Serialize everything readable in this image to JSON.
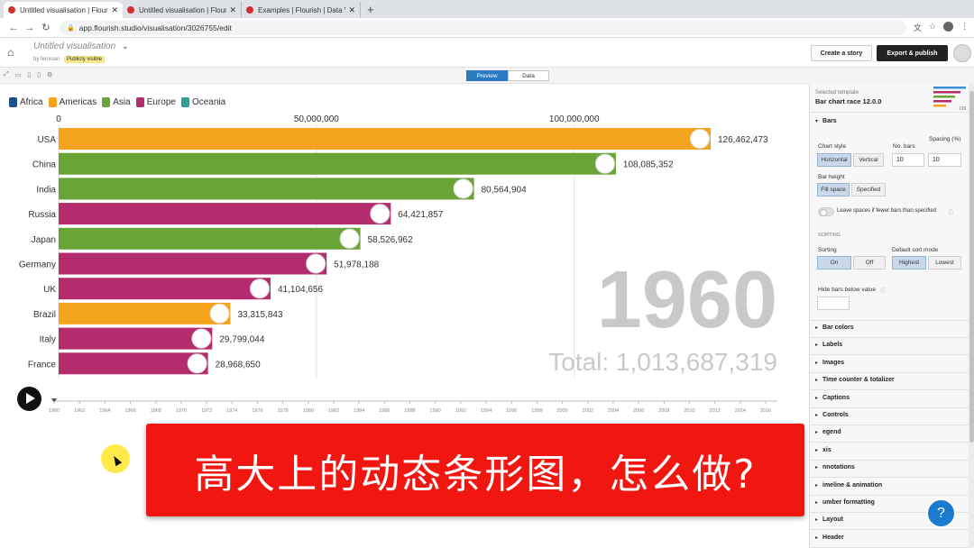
{
  "browser": {
    "tabs": [
      {
        "title": "Untitled visualisation | Flourish",
        "active": true
      },
      {
        "title": "Untitled visualisation | Flourish",
        "active": false
      },
      {
        "title": "Examples | Flourish | Data Visu",
        "active": false
      }
    ],
    "new_tab": "+",
    "url": "app.flourish.studio/visualisation/3026755/edit"
  },
  "header": {
    "title": "Untitled visualisation",
    "by": "by fenxuan",
    "visibility": "Publicly visible",
    "create_story": "Create a story",
    "export_publish": "Export & publish"
  },
  "toolbar": {
    "preview": "Preview",
    "data": "Data"
  },
  "chart_data": {
    "type": "bar",
    "orientation": "horizontal",
    "title": "",
    "legend": [
      {
        "name": "Africa",
        "color": "#1f4e8c"
      },
      {
        "name": "Americas",
        "color": "#f3a31c"
      },
      {
        "name": "Asia",
        "color": "#6aa436"
      },
      {
        "name": "Europe",
        "color": "#b42c6e"
      },
      {
        "name": "Oceania",
        "color": "#2aa198"
      }
    ],
    "categories": [
      "USA",
      "China",
      "India",
      "Russia",
      "Japan",
      "Germany",
      "UK",
      "Brazil",
      "Italy",
      "France"
    ],
    "values": [
      126462473,
      108085352,
      80564904,
      64421857,
      58526962,
      51978188,
      41104656,
      33315843,
      29799044,
      28968650
    ],
    "value_labels": [
      "126,462,473",
      "108,085,352",
      "80,564,904",
      "64,421,857",
      "58,526,962",
      "51,978,188",
      "41,104,656",
      "33,315,843",
      "29,799,044",
      "28,968,650"
    ],
    "regions": [
      "Americas",
      "Asia",
      "Asia",
      "Europe",
      "Asia",
      "Europe",
      "Europe",
      "Americas",
      "Europe",
      "Europe"
    ],
    "x_ticks": [
      0,
      50000000,
      100000000
    ],
    "x_tick_labels": [
      "0",
      "50,000,000",
      "100,000,000"
    ],
    "xlim": [
      0,
      145000000
    ],
    "year": "1960",
    "total_label": "Total: 1,013,687,319",
    "timeline_years": [
      "1960",
      "1962",
      "1964",
      "1966",
      "1968",
      "1970",
      "1972",
      "1974",
      "1976",
      "1978",
      "1980",
      "1982",
      "1984",
      "1986",
      "1988",
      "1990",
      "1992",
      "1994",
      "1996",
      "1998",
      "2000",
      "2002",
      "2004",
      "2006",
      "2008",
      "2010",
      "2012",
      "2014",
      "2016"
    ],
    "grid": true
  },
  "panel": {
    "selected_label": "Selected template",
    "selected_name": "Bar chart race 12.0.0",
    "thumb_year": "199",
    "bars_section": "Bars",
    "chart_style_label": "Chart style",
    "horizontal": "Horizontal",
    "vertical": "Vertical",
    "no_bars_label": "No. bars",
    "no_bars_value": "10",
    "spacing_label": "Spacing (%)",
    "spacing_value": "10",
    "bar_height_label": "Bar height",
    "fill_space": "Fill space",
    "specified": "Specified",
    "leave_spaces": "Leave spaces if fewer bars than specified",
    "sorting_heading": "SORTING",
    "sorting_label": "Sorting",
    "on": "On",
    "off": "Off",
    "default_sort_label": "Default sort mode",
    "highest": "Highest",
    "lowest": "Lowest",
    "hide_bars_label": "Hide bars below value",
    "sections": [
      "Bar colors",
      "Labels",
      "Images",
      "Time counter & totalizer",
      "Captions",
      "Controls",
      "egend",
      "xis",
      "nnotations",
      "imeline & animation",
      "umber formatting",
      "Layout",
      "Header"
    ],
    "help": "?"
  },
  "caption": "高大上的动态条形图，怎么做?"
}
